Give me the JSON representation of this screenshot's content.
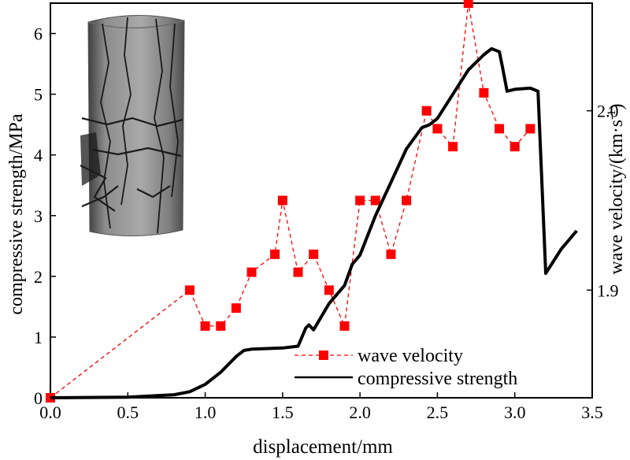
{
  "chart_data": {
    "type": "line",
    "title": "",
    "xlabel": "displacement/mm",
    "ylabel": "compressive strength/MPa",
    "y2label": "wave velocity/(km·s",
    "y2label_sup": "-1",
    "y2label_end": ")",
    "xlim": [
      0,
      3.5
    ],
    "ylim": [
      0,
      6.5
    ],
    "y2lim": [
      1.84,
      2.06
    ],
    "xticks": [
      0,
      0.5,
      1.0,
      1.5,
      2.0,
      2.5,
      3.0,
      3.5
    ],
    "xtick_labels": [
      "0.0",
      "0.5",
      "1.0",
      "1.5",
      "2.0",
      "2.5",
      "3.0",
      "3.5"
    ],
    "yticks": [
      0,
      1,
      2,
      3,
      4,
      5,
      6
    ],
    "ytick_labels": [
      "0",
      "1",
      "2",
      "3",
      "4",
      "5",
      "6"
    ],
    "y2ticks": [
      1.9,
      2.0
    ],
    "y2tick_labels": [
      "1.9",
      "2.0"
    ],
    "legend_position": "bottom-right",
    "inset_image": "cracked cylindrical rock specimen photo",
    "series": [
      {
        "name": "wave velocity",
        "axis": "right",
        "style": "dashed-red-square-markers",
        "color": "#ff0000",
        "x": [
          0.0,
          0.9,
          1.0,
          1.1,
          1.2,
          1.3,
          1.45,
          1.5,
          1.6,
          1.7,
          1.8,
          1.9,
          2.0,
          2.1,
          2.2,
          2.3,
          2.43,
          2.5,
          2.6,
          2.7,
          2.8,
          2.9,
          3.0,
          3.1
        ],
        "y": [
          1.84,
          1.9,
          1.88,
          1.88,
          1.89,
          1.91,
          1.92,
          1.95,
          1.91,
          1.92,
          1.9,
          1.88,
          1.95,
          1.95,
          1.92,
          1.95,
          2.0,
          1.99,
          1.98,
          2.06,
          2.01,
          1.99,
          1.98,
          1.99
        ]
      },
      {
        "name": "compressive strength",
        "axis": "left",
        "style": "solid-black",
        "color": "#000000",
        "x": [
          0.0,
          0.5,
          0.8,
          0.9,
          1.0,
          1.1,
          1.2,
          1.25,
          1.3,
          1.5,
          1.6,
          1.65,
          1.67,
          1.7,
          1.8,
          1.9,
          1.95,
          2.0,
          2.1,
          2.2,
          2.3,
          2.4,
          2.45,
          2.5,
          2.6,
          2.7,
          2.8,
          2.85,
          2.9,
          2.92,
          2.95,
          3.0,
          3.1,
          3.15,
          3.2,
          3.3,
          3.4
        ],
        "y": [
          0.0,
          0.01,
          0.05,
          0.1,
          0.22,
          0.42,
          0.68,
          0.78,
          0.8,
          0.82,
          0.85,
          1.15,
          1.2,
          1.12,
          1.55,
          1.85,
          2.2,
          2.35,
          3.0,
          3.55,
          4.1,
          4.45,
          4.5,
          4.6,
          5.0,
          5.4,
          5.65,
          5.75,
          5.7,
          5.45,
          5.05,
          5.08,
          5.1,
          5.05,
          2.05,
          2.45,
          2.75
        ]
      }
    ]
  }
}
